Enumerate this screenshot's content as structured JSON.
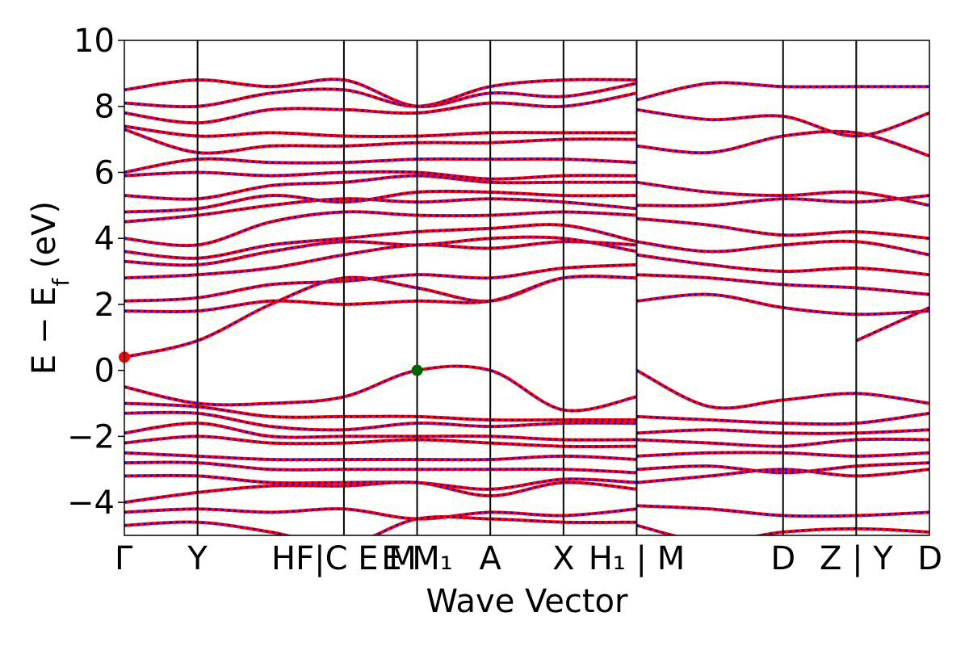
{
  "chart_data": {
    "type": "line",
    "title": "",
    "xlabel": "Wave Vector",
    "ylabel_main": "E − E",
    "ylabel_sub": "f",
    "ylabel_unit": " (eV)",
    "ylim": [
      -5,
      10
    ],
    "yticks": [
      -4,
      -2,
      0,
      2,
      4,
      6,
      8,
      10
    ],
    "ytick_labels": [
      "−4",
      "−2",
      "0",
      "2",
      "4",
      "6",
      "8",
      "10"
    ],
    "kpoints": [
      {
        "pos": 0.0,
        "label": "Γ"
      },
      {
        "pos": 1.0,
        "label": "Y"
      },
      {
        "pos": 3.0,
        "label": "HF|C E M"
      },
      {
        "pos": 4.0,
        "label": "E M₁"
      },
      {
        "pos": 5.0,
        "label": "A"
      },
      {
        "pos": 6.0,
        "label": "X"
      },
      {
        "pos": 7.0,
        "label": "H₁ | M"
      },
      {
        "pos": 9.0,
        "label": "D"
      },
      {
        "pos": 10.0,
        "label": "Z | Y"
      },
      {
        "pos": 11.0,
        "label": "D"
      }
    ],
    "xlim": [
      0,
      11
    ],
    "grid": false,
    "line_colors": {
      "band_primary": "#ff0000",
      "band_dashed": "#0000ff",
      "vertical_lines": "#000000"
    },
    "markers": [
      {
        "x": 4.0,
        "y": 0.0,
        "color": "#006400",
        "label": "VBM"
      },
      {
        "x": 0.0,
        "y": 0.4,
        "color": "#ff0000",
        "label": "CBM"
      }
    ],
    "bands": [
      {
        "name": "",
        "x": [
          0,
          1,
          2,
          3,
          4,
          5,
          6,
          7
        ],
        "y": [
          0.4,
          0.9,
          2.0,
          2.8,
          2.5,
          2.1,
          2.8,
          2.8
        ]
      },
      {
        "name": "",
        "x": [
          7,
          8,
          9,
          10,
          11
        ],
        "y": [
          2.1,
          2.3,
          1.9,
          1.7,
          1.8
        ]
      },
      {
        "name": "",
        "x": [
          10,
          11
        ],
        "y": [
          0.9,
          1.9
        ]
      },
      {
        "name": "",
        "x": [
          0,
          1,
          2,
          3,
          4,
          5,
          6,
          7
        ],
        "y": [
          1.8,
          1.8,
          2.1,
          2.0,
          2.1,
          2.1,
          2.8,
          2.8
        ]
      },
      {
        "name": "",
        "x": [
          0,
          1,
          2,
          3,
          4,
          5,
          6,
          7
        ],
        "y": [
          2.1,
          2.2,
          2.6,
          2.7,
          2.9,
          2.8,
          3.1,
          3.2
        ]
      },
      {
        "name": "",
        "x": [
          0,
          1,
          2,
          3,
          4,
          5,
          6,
          7
        ],
        "y": [
          2.8,
          2.9,
          3.1,
          3.5,
          3.8,
          3.7,
          3.9,
          3.8
        ]
      },
      {
        "name": "",
        "x": [
          0,
          1,
          2,
          3,
          4,
          5,
          6,
          7
        ],
        "y": [
          3.3,
          3.2,
          3.6,
          3.9,
          3.8,
          4.0,
          4.0,
          3.6
        ]
      },
      {
        "name": "",
        "x": [
          0,
          1,
          2,
          3,
          4,
          5,
          6,
          7
        ],
        "y": [
          3.6,
          3.4,
          3.8,
          4.0,
          4.2,
          4.3,
          4.4,
          3.9
        ]
      },
      {
        "name": "",
        "x": [
          0,
          1,
          2,
          3,
          4,
          5,
          6,
          7
        ],
        "y": [
          4.0,
          3.8,
          4.5,
          4.8,
          4.7,
          4.7,
          4.8,
          4.7
        ]
      },
      {
        "name": "",
        "x": [
          0,
          1,
          2,
          3,
          4,
          5,
          6,
          7
        ],
        "y": [
          4.5,
          4.7,
          5.0,
          5.2,
          5.1,
          5.2,
          5.1,
          4.9
        ]
      },
      {
        "name": "",
        "x": [
          0,
          1,
          2,
          3,
          4,
          5,
          6,
          7
        ],
        "y": [
          4.8,
          4.9,
          5.3,
          5.1,
          5.4,
          5.4,
          5.3,
          5.3
        ]
      },
      {
        "name": "",
        "x": [
          0,
          1,
          2,
          3,
          4,
          5,
          6,
          7
        ],
        "y": [
          5.3,
          5.2,
          5.6,
          5.7,
          5.9,
          5.7,
          5.7,
          5.7
        ]
      },
      {
        "name": "",
        "x": [
          0,
          1,
          2,
          3,
          4,
          5,
          6,
          7
        ],
        "y": [
          5.9,
          6.0,
          5.9,
          6.0,
          6.0,
          5.8,
          5.9,
          5.9
        ]
      },
      {
        "name": "",
        "x": [
          0,
          1,
          2,
          3,
          4,
          5,
          6,
          7
        ],
        "y": [
          6.0,
          6.4,
          6.3,
          6.3,
          6.4,
          6.4,
          6.4,
          6.3
        ]
      },
      {
        "name": "",
        "x": [
          0,
          1,
          2,
          3,
          4,
          5,
          6,
          7
        ],
        "y": [
          7.3,
          6.6,
          6.8,
          6.8,
          6.9,
          6.9,
          7.0,
          7.0
        ]
      },
      {
        "name": "",
        "x": [
          0,
          1,
          2,
          3,
          4,
          5,
          6,
          7
        ],
        "y": [
          7.4,
          7.1,
          7.2,
          7.1,
          7.1,
          7.2,
          7.2,
          7.2
        ]
      },
      {
        "name": "",
        "x": [
          0,
          1,
          2,
          3,
          4,
          5,
          6,
          7
        ],
        "y": [
          7.8,
          7.5,
          7.9,
          7.9,
          7.8,
          8.1,
          8.0,
          8.4
        ]
      },
      {
        "name": "",
        "x": [
          0,
          1,
          2,
          3,
          4,
          5,
          6,
          7
        ],
        "y": [
          8.1,
          8.0,
          8.4,
          8.5,
          8.0,
          8.6,
          8.8,
          8.8
        ]
      },
      {
        "name": "",
        "x": [
          0,
          1,
          2,
          3,
          4,
          5,
          6,
          7
        ],
        "y": [
          8.5,
          8.8,
          8.6,
          8.8,
          8.0,
          8.4,
          8.3,
          8.7
        ]
      },
      {
        "name": "",
        "x": [
          7,
          8,
          9,
          10,
          11
        ],
        "y": [
          2.9,
          2.8,
          2.6,
          2.5,
          2.3
        ]
      },
      {
        "name": "",
        "x": [
          7,
          8,
          9,
          10,
          11
        ],
        "y": [
          3.5,
          3.2,
          3.0,
          3.1,
          2.9
        ]
      },
      {
        "name": "",
        "x": [
          7,
          8,
          9,
          10,
          11
        ],
        "y": [
          3.9,
          3.6,
          3.8,
          3.9,
          3.5
        ]
      },
      {
        "name": "",
        "x": [
          7,
          8,
          9,
          10,
          11
        ],
        "y": [
          4.6,
          4.4,
          4.1,
          4.2,
          4.0
        ]
      },
      {
        "name": "",
        "x": [
          7,
          8,
          9,
          10,
          11
        ],
        "y": [
          5.0,
          5.0,
          5.2,
          5.1,
          5.3
        ]
      },
      {
        "name": "",
        "x": [
          7,
          8,
          9,
          10,
          11
        ],
        "y": [
          5.7,
          5.4,
          5.3,
          5.4,
          5.0
        ]
      },
      {
        "name": "",
        "x": [
          7,
          8,
          9,
          10,
          11
        ],
        "y": [
          6.8,
          6.6,
          7.1,
          7.2,
          6.5
        ]
      },
      {
        "name": "",
        "x": [
          7,
          8,
          9,
          10,
          11
        ],
        "y": [
          7.9,
          7.6,
          7.7,
          7.1,
          7.8
        ]
      },
      {
        "name": "",
        "x": [
          7,
          8,
          9,
          10,
          11
        ],
        "y": [
          8.2,
          8.7,
          8.6,
          8.6,
          8.6
        ]
      },
      {
        "name": "",
        "x": [
          0,
          1,
          2,
          3,
          4,
          5,
          6,
          7
        ],
        "y": [
          -0.5,
          -1.0,
          -1.0,
          -0.8,
          0.0,
          0.0,
          -1.2,
          -0.8
        ]
      },
      {
        "name": "",
        "x": [
          7,
          8,
          9,
          10,
          11
        ],
        "y": [
          0.0,
          -1.1,
          -0.9,
          -0.7,
          -1.0
        ]
      },
      {
        "name": "",
        "x": [
          0,
          1,
          2,
          3,
          4,
          5,
          6,
          7
        ],
        "y": [
          -1.0,
          -1.1,
          -1.4,
          -1.4,
          -1.4,
          -1.5,
          -1.5,
          -1.5
        ]
      },
      {
        "name": "",
        "x": [
          0,
          1,
          2,
          3,
          4,
          5,
          6,
          7
        ],
        "y": [
          -1.3,
          -1.3,
          -1.7,
          -1.8,
          -1.6,
          -1.7,
          -1.6,
          -1.6
        ]
      },
      {
        "name": "",
        "x": [
          0,
          1,
          2,
          3,
          4,
          5,
          6,
          7
        ],
        "y": [
          -1.9,
          -1.6,
          -2.0,
          -2.0,
          -2.0,
          -2.0,
          -2.1,
          -2.1
        ]
      },
      {
        "name": "",
        "x": [
          0,
          1,
          2,
          3,
          4,
          5,
          6,
          7
        ],
        "y": [
          -2.2,
          -2.0,
          -2.2,
          -2.2,
          -2.1,
          -2.2,
          -2.3,
          -2.3
        ]
      },
      {
        "name": "",
        "x": [
          0,
          1,
          2,
          3,
          4,
          5,
          6,
          7
        ],
        "y": [
          -2.5,
          -2.6,
          -2.7,
          -2.7,
          -2.7,
          -2.7,
          -2.6,
          -2.7
        ]
      },
      {
        "name": "",
        "x": [
          0,
          1,
          2,
          3,
          4,
          5,
          6,
          7
        ],
        "y": [
          -2.8,
          -2.8,
          -3.0,
          -3.0,
          -3.0,
          -3.0,
          -3.0,
          -3.1
        ]
      },
      {
        "name": "",
        "x": [
          0,
          1,
          2,
          3,
          4,
          5,
          6,
          7
        ],
        "y": [
          -3.2,
          -3.2,
          -3.4,
          -3.4,
          -3.4,
          -3.6,
          -3.3,
          -3.4
        ]
      },
      {
        "name": "",
        "x": [
          0,
          1,
          2,
          3,
          4,
          5,
          6,
          7
        ],
        "y": [
          -4.0,
          -3.7,
          -3.5,
          -3.5,
          -3.4,
          -3.8,
          -3.4,
          -3.6
        ]
      },
      {
        "name": "",
        "x": [
          0,
          1,
          2,
          3,
          4,
          5,
          6,
          7
        ],
        "y": [
          -4.3,
          -4.2,
          -4.3,
          -4.2,
          -4.5,
          -4.3,
          -4.4,
          -4.2
        ]
      },
      {
        "name": "",
        "x": [
          0,
          1,
          2,
          3,
          4,
          5,
          6,
          7
        ],
        "y": [
          -4.7,
          -4.6,
          -4.9,
          -5.3,
          -4.5,
          -4.5,
          -4.6,
          -4.6
        ]
      },
      {
        "name": "",
        "x": [
          7,
          8,
          9,
          10,
          11
        ],
        "y": [
          -1.4,
          -1.5,
          -1.6,
          -1.6,
          -1.3
        ]
      },
      {
        "name": "",
        "x": [
          7,
          8,
          9,
          10,
          11
        ],
        "y": [
          -1.9,
          -1.8,
          -1.9,
          -1.9,
          -1.8
        ]
      },
      {
        "name": "",
        "x": [
          7,
          8,
          9,
          10,
          11
        ],
        "y": [
          -2.1,
          -2.2,
          -2.3,
          -2.1,
          -2.1
        ]
      },
      {
        "name": "",
        "x": [
          7,
          8,
          9,
          10,
          11
        ],
        "y": [
          -2.6,
          -2.5,
          -2.5,
          -2.6,
          -2.5
        ]
      },
      {
        "name": "",
        "x": [
          7,
          8,
          9,
          10,
          11
        ],
        "y": [
          -3.0,
          -2.9,
          -3.1,
          -2.9,
          -2.8
        ]
      },
      {
        "name": "",
        "x": [
          7,
          8,
          9,
          10,
          11
        ],
        "y": [
          -3.4,
          -3.2,
          -3.0,
          -3.2,
          -3.0
        ]
      },
      {
        "name": "",
        "x": [
          7,
          8,
          9,
          10,
          11
        ],
        "y": [
          -4.1,
          -4.2,
          -4.4,
          -4.4,
          -4.3
        ]
      },
      {
        "name": "",
        "x": [
          7,
          8,
          9,
          10,
          11
        ],
        "y": [
          -4.7,
          -5.2,
          -4.9,
          -4.8,
          -4.9
        ]
      }
    ]
  }
}
